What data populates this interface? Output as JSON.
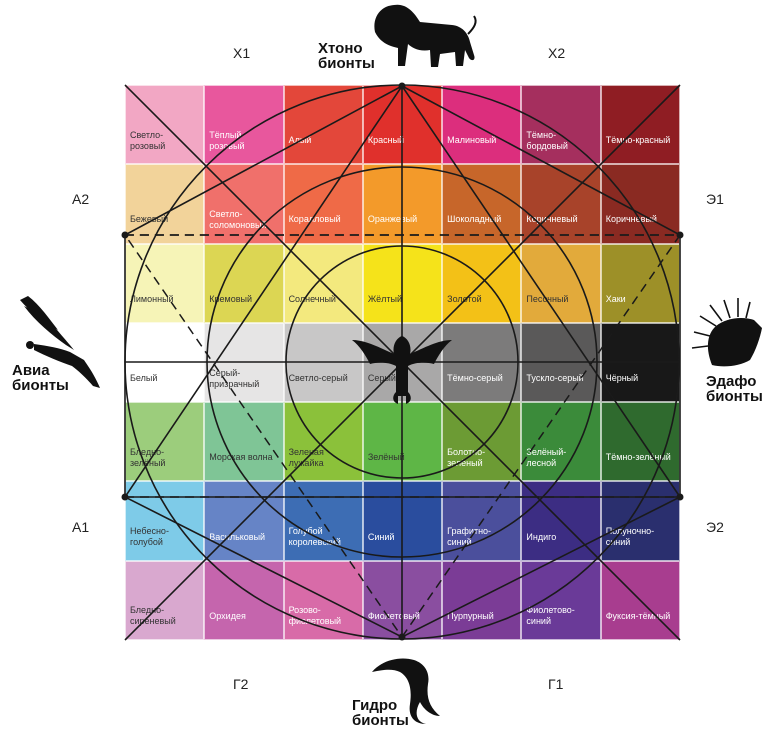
{
  "corner_labels": {
    "x1": "Х1",
    "x2": "Х2",
    "a2": "А2",
    "a1": "А1",
    "e1": "Э1",
    "e2": "Э2",
    "g2": "Г2",
    "g1": "Г1"
  },
  "groups": {
    "top": {
      "line1": "Хтоно",
      "line2": "бионты",
      "icon": "lion-icon"
    },
    "left": {
      "line1": "Авиа",
      "line2": "бионты",
      "icon": "eagle-icon"
    },
    "right": {
      "line1": "Эдафо",
      "line2": "бионты",
      "icon": "porcupine-icon"
    },
    "bottom": {
      "line1": "Гидро",
      "line2": "бионты",
      "icon": "dolphin-icon"
    },
    "center_icon": "dragon-icon"
  },
  "colors": [
    [
      {
        "label": "Светло-\nрозовый",
        "color": "#f2a7c4"
      },
      {
        "label": "Тёплый\nрозовый",
        "color": "#e8579d"
      },
      {
        "label": "Алый",
        "color": "#e3473a"
      },
      {
        "label": "Красный",
        "color": "#e0302c"
      },
      {
        "label": "Малиновый",
        "color": "#dc2e7d"
      },
      {
        "label": "Тёмно-\nбордовый",
        "color": "#a52f5e"
      },
      {
        "label": "Тёмно-красный",
        "color": "#8f1d23"
      }
    ],
    [
      {
        "label": "Бежевый",
        "color": "#f2d39a"
      },
      {
        "label": "Светло-\nсоломоновый",
        "color": "#f0706b"
      },
      {
        "label": "Коралловый",
        "color": "#ef6a47"
      },
      {
        "label": "Оранжевый",
        "color": "#f39a2a"
      },
      {
        "label": "Шоколадный",
        "color": "#c7662a"
      },
      {
        "label": "Коричневый",
        "color": "#a8432a"
      },
      {
        "label": "Коричневый",
        "color": "#8a2a22"
      }
    ],
    [
      {
        "label": "Лимонный",
        "color": "#f6f4b7"
      },
      {
        "label": "Кремовый",
        "color": "#dcd653"
      },
      {
        "label": "Солнечный",
        "color": "#f3e97e"
      },
      {
        "label": "Жёлтый",
        "color": "#f5e31a"
      },
      {
        "label": "Золотой",
        "color": "#f3c117"
      },
      {
        "label": "Песочный",
        "color": "#e2aa3b"
      },
      {
        "label": "Хаки",
        "color": "#9d9028"
      }
    ],
    [
      {
        "label": "Белый",
        "color": "#ffffff"
      },
      {
        "label": "Серый-\nпризрачный",
        "color": "#e6e5e5"
      },
      {
        "label": "Светло-серый",
        "color": "#c8c7c7"
      },
      {
        "label": "Серый",
        "color": "#a9a8a8"
      },
      {
        "label": "Тёмно-серый",
        "color": "#7c7b7b"
      },
      {
        "label": "Тускло-серый",
        "color": "#5a5959"
      },
      {
        "label": "Чёрный",
        "color": "#181818"
      }
    ],
    [
      {
        "label": "Бледно-\nзелёный",
        "color": "#9ccd7c"
      },
      {
        "label": "Морская волна",
        "color": "#7fc596"
      },
      {
        "label": "Зеленая\nлужайка",
        "color": "#8bc13a"
      },
      {
        "label": "Зелёный",
        "color": "#5eb646"
      },
      {
        "label": "Болотно-\nзелёный",
        "color": "#6c9b34"
      },
      {
        "label": "Зелёный-\nлесной",
        "color": "#3b8b3a"
      },
      {
        "label": "Тёмно-зелёный",
        "color": "#2f6a2e"
      }
    ],
    [
      {
        "label": "Небесно-\nголубой",
        "color": "#7ecbe8"
      },
      {
        "label": "Васильковый",
        "color": "#6684c6"
      },
      {
        "label": "Голубой\nкоролевский",
        "color": "#3d6db4"
      },
      {
        "label": "Синий",
        "color": "#2a4d9e"
      },
      {
        "label": "Графитно-\nсиний",
        "color": "#4b4f9c"
      },
      {
        "label": "Индиго",
        "color": "#3c2d83"
      },
      {
        "label": "Полуночно-\nсиний",
        "color": "#2a2f6e"
      }
    ],
    [
      {
        "label": "Бледно-\nсиреневый",
        "color": "#d9a8cf"
      },
      {
        "label": "Орхидея",
        "color": "#c565ad"
      },
      {
        "label": "Розово-\nфиолетовый",
        "color": "#d86ba8"
      },
      {
        "label": "Фиолетовый",
        "color": "#8a4ea0"
      },
      {
        "label": "Пурпурный",
        "color": "#7b3c96"
      },
      {
        "label": "Фиолетово-\nсиний",
        "color": "#6a3a98"
      },
      {
        "label": "Фуксия-тёмный",
        "color": "#a83d8f"
      }
    ]
  ]
}
